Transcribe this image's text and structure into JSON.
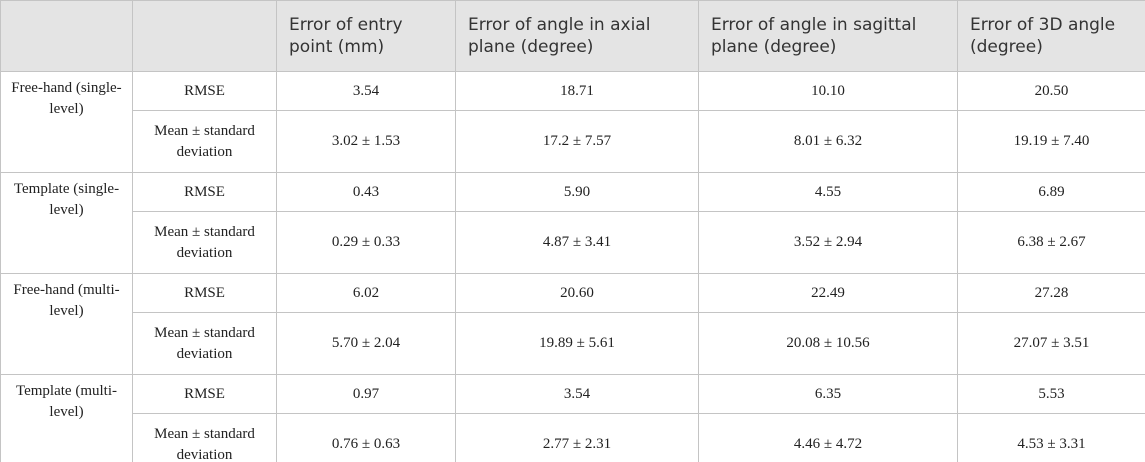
{
  "table": {
    "columns": [
      "Error of entry point (mm)",
      "Error of angle in axial plane (degree)",
      "Error of angle in sagittal plane (degree)",
      "Error of 3D angle (degree)"
    ],
    "groups": [
      {
        "label": "Free-hand (single-level)",
        "rows": [
          [
            "RMSE",
            "3.54",
            "18.71",
            "10.10",
            "20.50"
          ],
          [
            "Mean ± standard deviation",
            "3.02 ± 1.53",
            "17.2 ± 7.57",
            "8.01 ± 6.32",
            "19.19 ± 7.40"
          ]
        ]
      },
      {
        "label": "Template (single-level)",
        "rows": [
          [
            "RMSE",
            "0.43",
            "5.90",
            "4.55",
            "6.89"
          ],
          [
            "Mean ± standard deviation",
            "0.29 ± 0.33",
            "4.87 ± 3.41",
            "3.52 ± 2.94",
            "6.38 ± 2.67"
          ]
        ]
      },
      {
        "label": "Free-hand (multi-level)",
        "rows": [
          [
            "RMSE",
            "6.02",
            "20.60",
            "22.49",
            "27.28"
          ],
          [
            "Mean ± standard deviation",
            "5.70 ± 2.04",
            "19.89 ± 5.61",
            "20.08 ± 10.56",
            "27.07 ± 3.51"
          ]
        ]
      },
      {
        "label": "Template (multi-level)",
        "rows": [
          [
            "RMSE",
            "0.97",
            "3.54",
            "6.35",
            "5.53"
          ],
          [
            "Mean ± standard deviation",
            "0.76 ± 0.63",
            "2.77 ± 2.31",
            "4.46 ± 4.72",
            "4.53 ± 3.31"
          ]
        ]
      }
    ]
  }
}
